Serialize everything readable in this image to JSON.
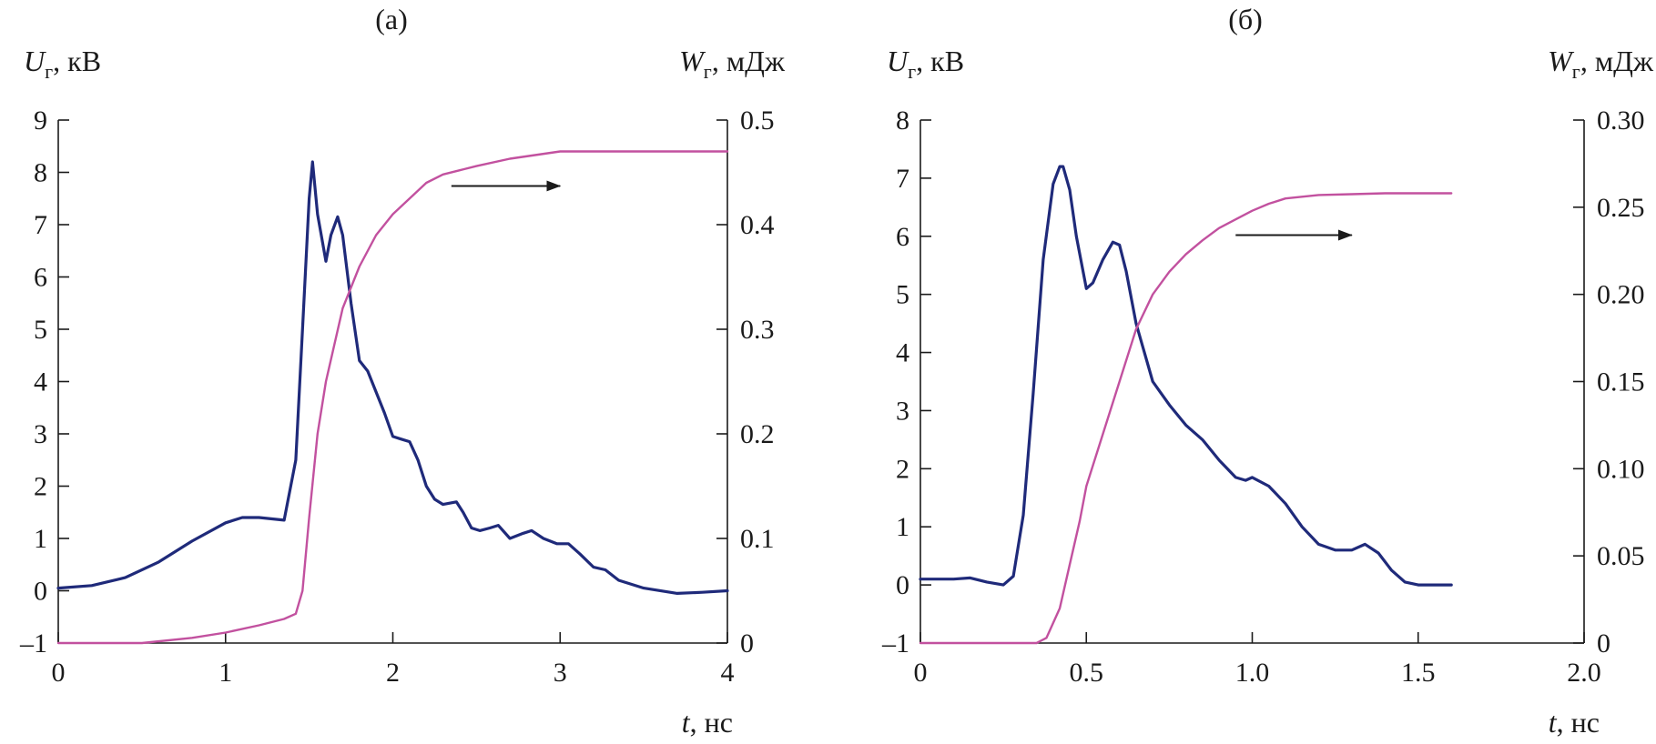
{
  "colors": {
    "voltage": "#1f2a7a",
    "energy": "#c2519f",
    "axis": "#1a1a1a"
  },
  "chart_data": [
    {
      "type": "line",
      "title": "(а)",
      "xlabel": {
        "symbol": "t",
        "unit": ", нс"
      },
      "ylabel_left": {
        "symbol": "U",
        "sub": "г",
        "unit": ", кВ"
      },
      "ylabel_right": {
        "symbol": "W",
        "sub": "г",
        "unit": ", мДж"
      },
      "xlim": [
        0,
        4
      ],
      "ylim_left": [
        -1,
        9
      ],
      "ylim_right": [
        0,
        0.5
      ],
      "x_ticks": [
        {
          "v": 0,
          "label": "0"
        },
        {
          "v": 1,
          "label": "1"
        },
        {
          "v": 2,
          "label": "2"
        },
        {
          "v": 3,
          "label": "3"
        },
        {
          "v": 4,
          "label": "4"
        }
      ],
      "y_left_ticks": [
        {
          "v": -1,
          "label": "–1"
        },
        {
          "v": 0,
          "label": "0"
        },
        {
          "v": 1,
          "label": "1"
        },
        {
          "v": 2,
          "label": "2"
        },
        {
          "v": 3,
          "label": "3"
        },
        {
          "v": 4,
          "label": "4"
        },
        {
          "v": 5,
          "label": "5"
        },
        {
          "v": 6,
          "label": "6"
        },
        {
          "v": 7,
          "label": "7"
        },
        {
          "v": 8,
          "label": "8"
        },
        {
          "v": 9,
          "label": "9"
        }
      ],
      "y_right_ticks": [
        {
          "v": 0,
          "label": "0"
        },
        {
          "v": 0.1,
          "label": "0.1"
        },
        {
          "v": 0.2,
          "label": "0.2"
        },
        {
          "v": 0.3,
          "label": "0.3"
        },
        {
          "v": 0.4,
          "label": "0.4"
        },
        {
          "v": 0.5,
          "label": "0.5"
        }
      ],
      "arrow": {
        "x": [
          2.35,
          3.0
        ],
        "y_right": 0.437
      },
      "series": [
        {
          "axis": "left",
          "color_key": "voltage",
          "x": [
            0,
            0.2,
            0.4,
            0.6,
            0.8,
            1.0,
            1.1,
            1.2,
            1.35,
            1.42,
            1.46,
            1.5,
            1.52,
            1.55,
            1.6,
            1.63,
            1.67,
            1.7,
            1.75,
            1.8,
            1.85,
            1.9,
            1.95,
            2.0,
            2.05,
            2.1,
            2.15,
            2.2,
            2.25,
            2.3,
            2.38,
            2.42,
            2.47,
            2.52,
            2.58,
            2.63,
            2.7,
            2.78,
            2.83,
            2.9,
            2.98,
            3.05,
            3.12,
            3.2,
            3.27,
            3.35,
            3.5,
            3.7,
            3.85,
            4.0
          ],
          "y": [
            0.05,
            0.1,
            0.25,
            0.55,
            0.95,
            1.3,
            1.4,
            1.4,
            1.35,
            2.5,
            5.0,
            7.5,
            8.2,
            7.2,
            6.3,
            6.8,
            7.15,
            6.8,
            5.5,
            4.4,
            4.2,
            3.8,
            3.4,
            2.95,
            2.9,
            2.85,
            2.5,
            2.0,
            1.75,
            1.65,
            1.7,
            1.5,
            1.2,
            1.15,
            1.2,
            1.25,
            1.0,
            1.1,
            1.15,
            1.0,
            0.9,
            0.9,
            0.7,
            0.45,
            0.4,
            0.2,
            0.05,
            -0.05,
            -0.03,
            0.0
          ]
        },
        {
          "axis": "right",
          "color_key": "energy",
          "x": [
            0,
            0.5,
            0.8,
            1.0,
            1.2,
            1.35,
            1.42,
            1.46,
            1.5,
            1.55,
            1.6,
            1.7,
            1.8,
            1.9,
            2.0,
            2.1,
            2.2,
            2.3,
            2.4,
            2.5,
            2.7,
            3.0,
            3.5,
            4.0
          ],
          "y": [
            0,
            0,
            0.005,
            0.01,
            0.017,
            0.023,
            0.028,
            0.05,
            0.12,
            0.2,
            0.25,
            0.32,
            0.36,
            0.39,
            0.41,
            0.425,
            0.44,
            0.448,
            0.452,
            0.456,
            0.463,
            0.47,
            0.47,
            0.47
          ]
        }
      ]
    },
    {
      "type": "line",
      "title": "(б)",
      "xlabel": {
        "symbol": "t",
        "unit": ", нс"
      },
      "ylabel_left": {
        "symbol": "U",
        "sub": "г",
        "unit": ", кВ"
      },
      "ylabel_right": {
        "symbol": "W",
        "sub": "г",
        "unit": ", мДж"
      },
      "xlim": [
        0,
        2.0
      ],
      "ylim_left": [
        -1,
        8
      ],
      "ylim_right": [
        0,
        0.3
      ],
      "x_ticks": [
        {
          "v": 0,
          "label": "0"
        },
        {
          "v": 0.5,
          "label": "0.5"
        },
        {
          "v": 1.0,
          "label": "1.0"
        },
        {
          "v": 1.5,
          "label": "1.5"
        },
        {
          "v": 2.0,
          "label": "2.0"
        }
      ],
      "y_left_ticks": [
        {
          "v": -1,
          "label": "–1"
        },
        {
          "v": 0,
          "label": "0"
        },
        {
          "v": 1,
          "label": "1"
        },
        {
          "v": 2,
          "label": "2"
        },
        {
          "v": 3,
          "label": "3"
        },
        {
          "v": 4,
          "label": "4"
        },
        {
          "v": 5,
          "label": "5"
        },
        {
          "v": 6,
          "label": "6"
        },
        {
          "v": 7,
          "label": "7"
        },
        {
          "v": 8,
          "label": "8"
        }
      ],
      "y_right_ticks": [
        {
          "v": 0,
          "label": "0"
        },
        {
          "v": 0.05,
          "label": "0.05"
        },
        {
          "v": 0.1,
          "label": "0.10"
        },
        {
          "v": 0.15,
          "label": "0.15"
        },
        {
          "v": 0.2,
          "label": "0.20"
        },
        {
          "v": 0.25,
          "label": "0.25"
        },
        {
          "v": 0.3,
          "label": "0.30"
        }
      ],
      "arrow": {
        "x": [
          0.95,
          1.3
        ],
        "y_right": 0.234
      },
      "series": [
        {
          "axis": "left",
          "color_key": "voltage",
          "x": [
            0,
            0.1,
            0.15,
            0.2,
            0.25,
            0.28,
            0.31,
            0.34,
            0.37,
            0.4,
            0.42,
            0.43,
            0.45,
            0.47,
            0.5,
            0.52,
            0.55,
            0.58,
            0.6,
            0.62,
            0.65,
            0.7,
            0.75,
            0.8,
            0.85,
            0.9,
            0.95,
            0.98,
            1.0,
            1.05,
            1.1,
            1.15,
            1.2,
            1.25,
            1.3,
            1.34,
            1.38,
            1.42,
            1.46,
            1.5,
            1.6
          ],
          "y": [
            0.1,
            0.1,
            0.12,
            0.05,
            0.0,
            0.15,
            1.2,
            3.3,
            5.6,
            6.9,
            7.2,
            7.2,
            6.8,
            6.0,
            5.1,
            5.2,
            5.6,
            5.9,
            5.85,
            5.4,
            4.5,
            3.5,
            3.1,
            2.75,
            2.5,
            2.15,
            1.85,
            1.8,
            1.85,
            1.7,
            1.4,
            1.0,
            0.7,
            0.6,
            0.6,
            0.7,
            0.55,
            0.25,
            0.05,
            0.0,
            0.0
          ]
        },
        {
          "axis": "right",
          "color_key": "energy",
          "x": [
            0,
            0.3,
            0.35,
            0.38,
            0.42,
            0.45,
            0.48,
            0.5,
            0.55,
            0.6,
            0.65,
            0.7,
            0.75,
            0.8,
            0.85,
            0.9,
            0.95,
            1.0,
            1.05,
            1.1,
            1.2,
            1.3,
            1.4,
            1.5,
            1.6
          ],
          "y": [
            0,
            0,
            0,
            0.003,
            0.02,
            0.045,
            0.07,
            0.09,
            0.12,
            0.15,
            0.18,
            0.2,
            0.213,
            0.223,
            0.231,
            0.238,
            0.243,
            0.248,
            0.252,
            0.255,
            0.257,
            0.2575,
            0.258,
            0.258,
            0.258
          ]
        }
      ]
    }
  ]
}
